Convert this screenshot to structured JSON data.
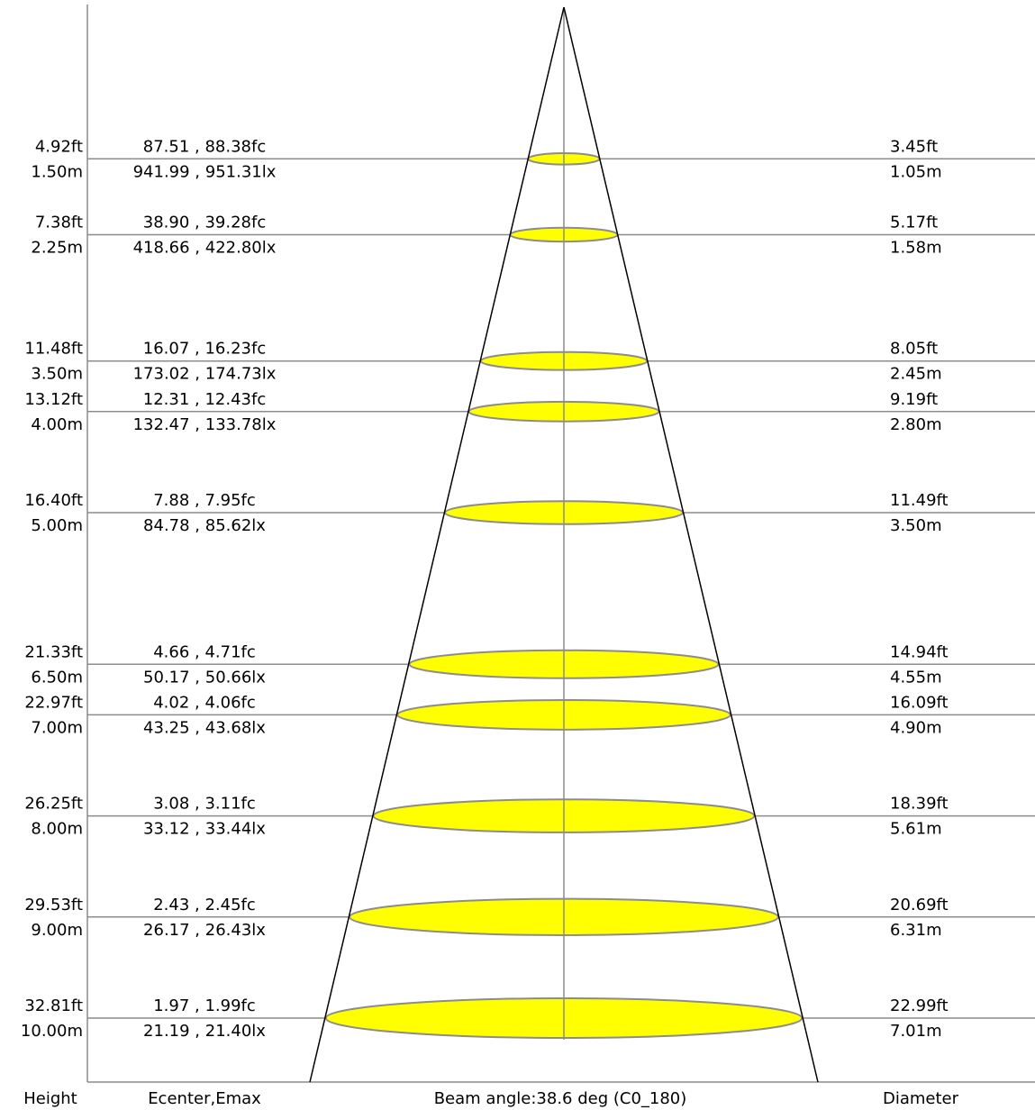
{
  "colors": {
    "spot_fill": "#ffff00",
    "spot_stroke": "#8c8c8c",
    "level_line": "#8c8c8c",
    "axis": "#8c8c8c",
    "cone": "#000000",
    "text": "#000000"
  },
  "footer": {
    "height_label": "Height",
    "illuminance_label": "Ecenter,Emax",
    "beam_angle_label": "Beam angle:38.6 deg (C0_180)",
    "diameter_label": "Diameter"
  },
  "chart_data": {
    "type": "beam-diagram",
    "beam_angle_deg": 38.6,
    "planes": "C0_180",
    "levels": [
      {
        "height_m": 1.5,
        "height_ft": "4.92ft",
        "height_m_label": "1.50m",
        "fc_label": "87.51 , 88.38fc",
        "lx_label": "941.99 , 951.31lx",
        "diameter_ft": "3.45ft",
        "diameter_m": "1.05m",
        "diameter_m_value": 1.05
      },
      {
        "height_m": 2.25,
        "height_ft": "7.38ft",
        "height_m_label": "2.25m",
        "fc_label": "38.90 , 39.28fc",
        "lx_label": "418.66 , 422.80lx",
        "diameter_ft": "5.17ft",
        "diameter_m": "1.58m",
        "diameter_m_value": 1.58
      },
      {
        "height_m": 3.5,
        "height_ft": "11.48ft",
        "height_m_label": "3.50m",
        "fc_label": "16.07 , 16.23fc",
        "lx_label": "173.02 , 174.73lx",
        "diameter_ft": "8.05ft",
        "diameter_m": "2.45m",
        "diameter_m_value": 2.45
      },
      {
        "height_m": 4.0,
        "height_ft": "13.12ft",
        "height_m_label": "4.00m",
        "fc_label": "12.31 , 12.43fc",
        "lx_label": "132.47 , 133.78lx",
        "diameter_ft": "9.19ft",
        "diameter_m": "2.80m",
        "diameter_m_value": 2.8
      },
      {
        "height_m": 5.0,
        "height_ft": "16.40ft",
        "height_m_label": "5.00m",
        "fc_label": "7.88 , 7.95fc",
        "lx_label": "84.78 , 85.62lx",
        "diameter_ft": "11.49ft",
        "diameter_m": "3.50m",
        "diameter_m_value": 3.5
      },
      {
        "height_m": 6.5,
        "height_ft": "21.33ft",
        "height_m_label": "6.50m",
        "fc_label": "4.66 , 4.71fc",
        "lx_label": "50.17 , 50.66lx",
        "diameter_ft": "14.94ft",
        "diameter_m": "4.55m",
        "diameter_m_value": 4.55
      },
      {
        "height_m": 7.0,
        "height_ft": "22.97ft",
        "height_m_label": "7.00m",
        "fc_label": "4.02 , 4.06fc",
        "lx_label": "43.25 , 43.68lx",
        "diameter_ft": "16.09ft",
        "diameter_m": "4.90m",
        "diameter_m_value": 4.9
      },
      {
        "height_m": 8.0,
        "height_ft": "26.25ft",
        "height_m_label": "8.00m",
        "fc_label": "3.08 , 3.11fc",
        "lx_label": "33.12 , 33.44lx",
        "diameter_ft": "18.39ft",
        "diameter_m": "5.61m",
        "diameter_m_value": 5.61
      },
      {
        "height_m": 9.0,
        "height_ft": "29.53ft",
        "height_m_label": "9.00m",
        "fc_label": "2.43 , 2.45fc",
        "lx_label": "26.17 , 26.43lx",
        "diameter_ft": "20.69ft",
        "diameter_m": "6.31m",
        "diameter_m_value": 6.31
      },
      {
        "height_m": 10.0,
        "height_ft": "32.81ft",
        "height_m_label": "10.00m",
        "fc_label": "1.97 , 1.99fc",
        "lx_label": "21.19 , 21.40lx",
        "diameter_ft": "22.99ft",
        "diameter_m": "7.01m",
        "diameter_m_value": 7.01
      }
    ]
  }
}
